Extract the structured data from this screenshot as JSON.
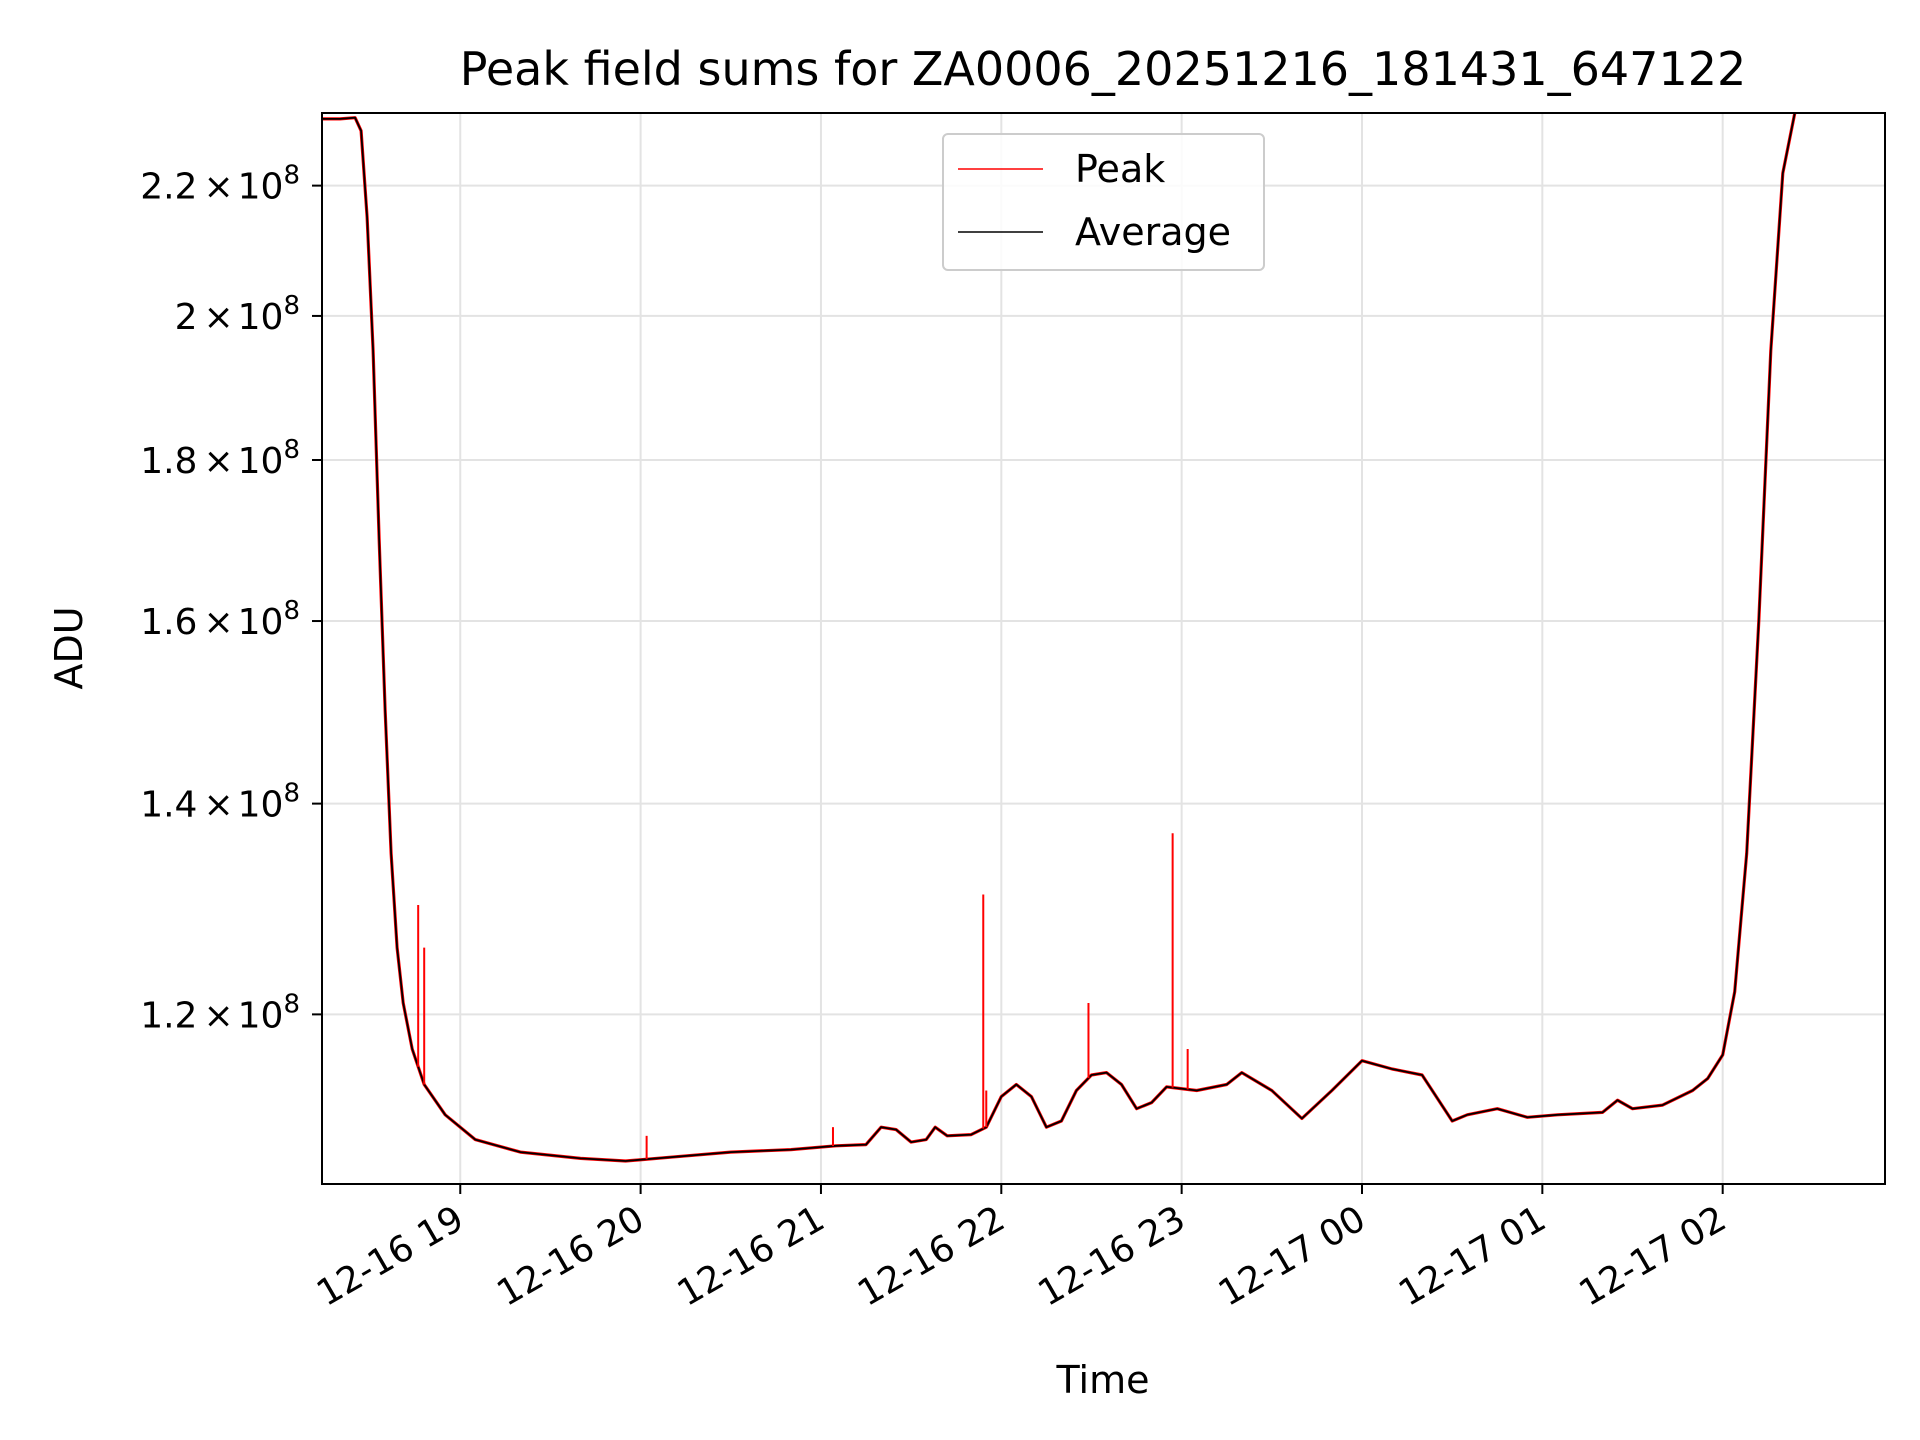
{
  "chart_data": {
    "type": "line",
    "title": "Peak field sums for ZA0006_20251216_181431_647122",
    "xlabel": "Time",
    "ylabel": "ADU",
    "y_scale": "log",
    "xlim": [
      "12-16 18:14",
      "12-17 02:54"
    ],
    "ylim": [
      106000000,
      232000000
    ],
    "grid": true,
    "legend_position": "upper-center",
    "x_ticks": [
      {
        "t": "12-16 19:00",
        "label": "12-16 19"
      },
      {
        "t": "12-16 20:00",
        "label": "12-16 20"
      },
      {
        "t": "12-16 21:00",
        "label": "12-16 21"
      },
      {
        "t": "12-16 22:00",
        "label": "12-16 22"
      },
      {
        "t": "12-16 23:00",
        "label": "12-16 23"
      },
      {
        "t": "12-17 00:00",
        "label": "12-17 00"
      },
      {
        "t": "12-17 01:00",
        "label": "12-17 01"
      },
      {
        "t": "12-17 02:00",
        "label": "12-17 02"
      }
    ],
    "y_ticks": [
      {
        "value": 120000000,
        "mantissa": "1.2",
        "base": "10",
        "exp": "8"
      },
      {
        "value": 140000000,
        "mantissa": "1.4",
        "base": "10",
        "exp": "8"
      },
      {
        "value": 160000000,
        "mantissa": "1.6",
        "base": "10",
        "exp": "8"
      },
      {
        "value": 180000000,
        "mantissa": "1.8",
        "base": "10",
        "exp": "8"
      },
      {
        "value": 200000000,
        "mantissa": "2",
        "base": "10",
        "exp": "8"
      },
      {
        "value": 220000000,
        "mantissa": "2.2",
        "base": "10",
        "exp": "8"
      }
    ],
    "series": [
      {
        "name": "Average",
        "color": "#000000",
        "points": [
          [
            "12-16 18:14",
            231000000
          ],
          [
            "12-16 18:20",
            231000000
          ],
          [
            "12-16 18:25",
            231200000
          ],
          [
            "12-16 18:27",
            229000000
          ],
          [
            "12-16 18:29",
            215000000
          ],
          [
            "12-16 18:31",
            195000000
          ],
          [
            "12-16 18:33",
            170000000
          ],
          [
            "12-16 18:35",
            150000000
          ],
          [
            "12-16 18:37",
            135000000
          ],
          [
            "12-16 18:39",
            126000000
          ],
          [
            "12-16 18:41",
            121000000
          ],
          [
            "12-16 18:44",
            117000000
          ],
          [
            "12-16 18:48",
            114000000
          ],
          [
            "12-16 18:55",
            111500000
          ],
          [
            "12-16 19:05",
            109500000
          ],
          [
            "12-16 19:20",
            108500000
          ],
          [
            "12-16 19:40",
            108000000
          ],
          [
            "12-16 19:55",
            107800000
          ],
          [
            "12-16 20:10",
            108100000
          ],
          [
            "12-16 20:30",
            108500000
          ],
          [
            "12-16 20:50",
            108700000
          ],
          [
            "12-16 21:05",
            109000000
          ],
          [
            "12-16 21:15",
            109100000
          ],
          [
            "12-16 21:20",
            110500000
          ],
          [
            "12-16 21:25",
            110300000
          ],
          [
            "12-16 21:30",
            109300000
          ],
          [
            "12-16 21:35",
            109500000
          ],
          [
            "12-16 21:38",
            110500000
          ],
          [
            "12-16 21:42",
            109800000
          ],
          [
            "12-16 21:50",
            109900000
          ],
          [
            "12-16 21:55",
            110500000
          ],
          [
            "12-16 22:00",
            113000000
          ],
          [
            "12-16 22:05",
            114000000
          ],
          [
            "12-16 22:10",
            113000000
          ],
          [
            "12-16 22:15",
            110500000
          ],
          [
            "12-16 22:20",
            111000000
          ],
          [
            "12-16 22:25",
            113500000
          ],
          [
            "12-16 22:30",
            114800000
          ],
          [
            "12-16 22:35",
            115000000
          ],
          [
            "12-16 22:40",
            114000000
          ],
          [
            "12-16 22:45",
            112000000
          ],
          [
            "12-16 22:50",
            112500000
          ],
          [
            "12-16 22:55",
            113800000
          ],
          [
            "12-16 23:05",
            113500000
          ],
          [
            "12-16 23:15",
            114000000
          ],
          [
            "12-16 23:20",
            115000000
          ],
          [
            "12-16 23:30",
            113500000
          ],
          [
            "12-16 23:40",
            111200000
          ],
          [
            "12-16 23:50",
            113500000
          ],
          [
            "12-17 00:00",
            116000000
          ],
          [
            "12-17 00:10",
            115300000
          ],
          [
            "12-17 00:20",
            114800000
          ],
          [
            "12-17 00:30",
            111000000
          ],
          [
            "12-17 00:35",
            111500000
          ],
          [
            "12-17 00:45",
            112000000
          ],
          [
            "12-17 00:55",
            111300000
          ],
          [
            "12-17 01:05",
            111500000
          ],
          [
            "12-17 01:20",
            111700000
          ],
          [
            "12-17 01:25",
            112700000
          ],
          [
            "12-17 01:30",
            112000000
          ],
          [
            "12-17 01:40",
            112300000
          ],
          [
            "12-17 01:50",
            113500000
          ],
          [
            "12-17 01:55",
            114500000
          ],
          [
            "12-17 02:00",
            116500000
          ],
          [
            "12-17 02:04",
            122000000
          ],
          [
            "12-17 02:08",
            135000000
          ],
          [
            "12-17 02:12",
            160000000
          ],
          [
            "12-17 02:16",
            195000000
          ],
          [
            "12-17 02:20",
            222000000
          ],
          [
            "12-17 02:24",
            232000000
          ]
        ]
      },
      {
        "name": "Peak",
        "color": "#ff0000",
        "spikes": [
          [
            "12-16 18:46",
            130000000
          ],
          [
            "12-16 18:48",
            126000000
          ],
          [
            "12-16 20:02",
            109800000
          ],
          [
            "12-16 21:04",
            110500000
          ],
          [
            "12-16 21:54",
            131000000
          ],
          [
            "12-16 21:55",
            113500000
          ],
          [
            "12-16 22:29",
            121000000
          ],
          [
            "12-16 22:57",
            137000000
          ],
          [
            "12-16 23:02",
            117000000
          ]
        ]
      }
    ]
  }
}
